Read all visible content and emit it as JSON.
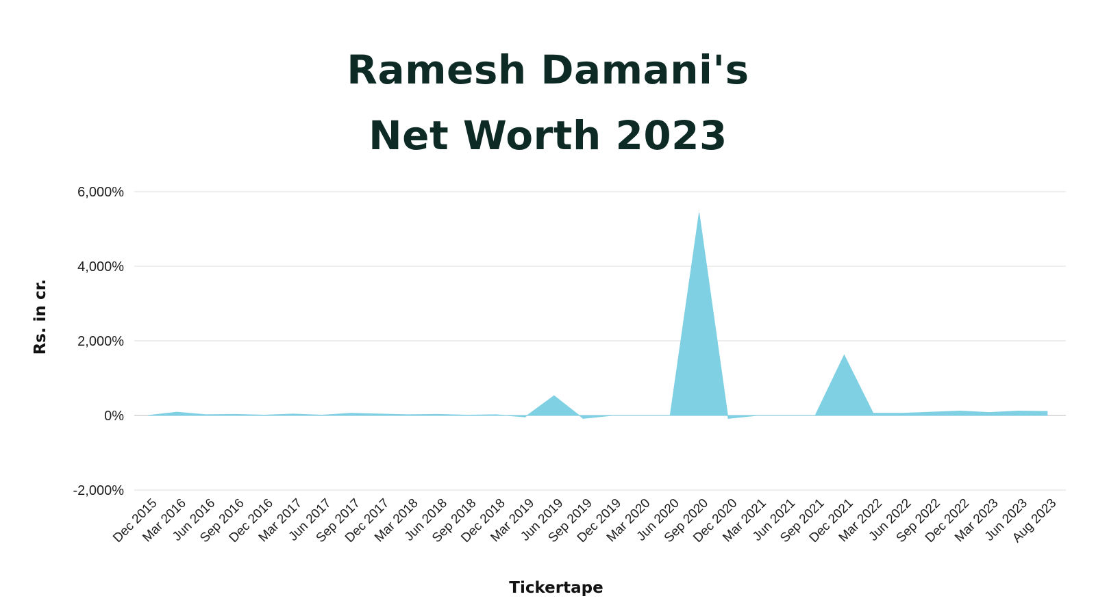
{
  "title": {
    "line1": "Ramesh Damani's",
    "line2": "Net Worth 2023"
  },
  "colors": {
    "area": "#7fd0e3",
    "grid": "#e4e4e4",
    "zero_line": "#c8c8c8",
    "title": "#0e2a25"
  },
  "chart_data": {
    "type": "area",
    "title": "Ramesh Damani's Net Worth 2023",
    "xlabel": "Tickertape",
    "ylabel": "Rs. in cr.",
    "ylim": [
      -2000,
      6000
    ],
    "yticks": [
      6000,
      4000,
      2000,
      0,
      -2000
    ],
    "ytick_labels": [
      "6,000%",
      "4,000%",
      "2,000%",
      "0%",
      "-2,000%"
    ],
    "grid": true,
    "categories": [
      "Dec 2015",
      "Mar 2016",
      "Jun 2016",
      "Sep 2016",
      "Dec 2016",
      "Mar 2017",
      "Jun 2017",
      "Sep 2017",
      "Dec 2017",
      "Mar 2018",
      "Jun 2018",
      "Sep 2018",
      "Dec 2018",
      "Mar 2019",
      "Jun 2019",
      "Sep 2019",
      "Dec 2019",
      "Mar 2020",
      "Jun 2020",
      "Sep 2020",
      "Dec 2020",
      "Mar 2021",
      "Jun 2021",
      "Sep 2021",
      "Dec 2021",
      "Mar 2022",
      "Jun 2022",
      "Sep 2022",
      "Dec 2022",
      "Mar 2023",
      "Jun 2023",
      "Aug 2023"
    ],
    "values": [
      0,
      90,
      20,
      30,
      10,
      40,
      10,
      60,
      40,
      20,
      30,
      10,
      20,
      -40,
      530,
      -80,
      0,
      0,
      0,
      5430,
      -80,
      0,
      0,
      0,
      1620,
      60,
      60,
      90,
      120,
      80,
      120,
      110
    ]
  }
}
